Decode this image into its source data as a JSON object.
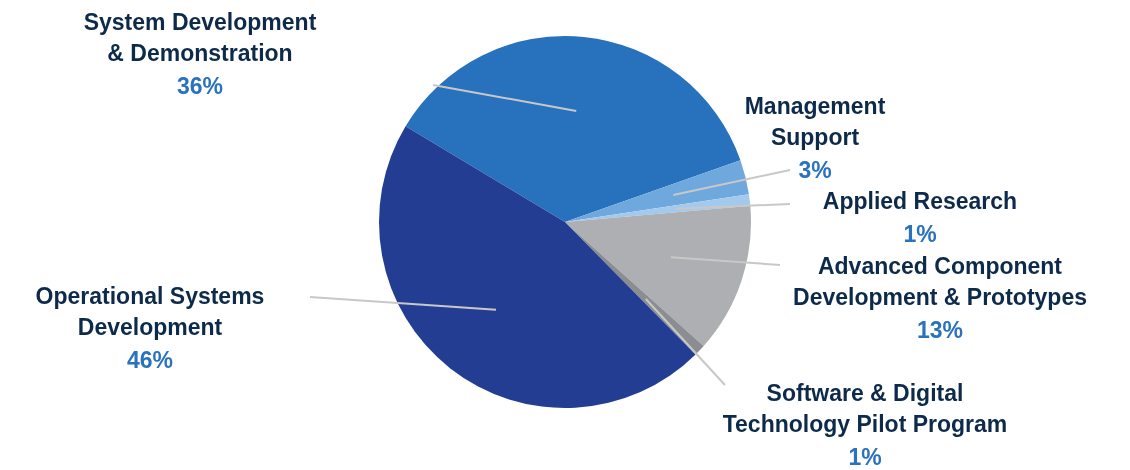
{
  "chart_data": {
    "type": "pie",
    "categories": [
      "System Development\n& Demonstration",
      "Management\nSupport",
      "Applied Research",
      "Advanced Component\nDevelopment & Prototypes",
      "Software & Digital\nTechnology Pilot Program",
      "Operational Systems\nDevelopment"
    ],
    "values": [
      36,
      3,
      1,
      13,
      1,
      46
    ],
    "value_labels": [
      "36%",
      "3%",
      "1%",
      "13%",
      "1%",
      "46%"
    ],
    "colors": [
      "#2872bd",
      "#6fa8dd",
      "#a3c9ec",
      "#aeafb2",
      "#8c8d90",
      "#233d93"
    ]
  }
}
